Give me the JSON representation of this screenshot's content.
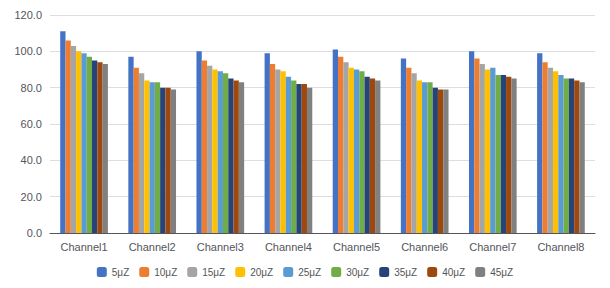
{
  "chart_data": {
    "type": "bar",
    "categories": [
      "Channel1",
      "Channel2",
      "Channel3",
      "Channel4",
      "Channel5",
      "Channel6",
      "Channel7",
      "Channel8"
    ],
    "series": [
      {
        "name": "5μZ",
        "color": "#4472C4",
        "values": [
          111,
          97,
          100,
          99,
          101,
          96,
          100,
          99
        ]
      },
      {
        "name": "10μZ",
        "color": "#ED7D31",
        "values": [
          106,
          91,
          95,
          93,
          97,
          91,
          96,
          94
        ]
      },
      {
        "name": "15μZ",
        "color": "#A5A5A5",
        "values": [
          103,
          88,
          92,
          90,
          94,
          88,
          93,
          91
        ]
      },
      {
        "name": "20μZ",
        "color": "#FFC000",
        "values": [
          100,
          84,
          90,
          89,
          91,
          84,
          90,
          89
        ]
      },
      {
        "name": "25μZ",
        "color": "#5B9BD5",
        "values": [
          99,
          83,
          89,
          86,
          90,
          83,
          91,
          87
        ]
      },
      {
        "name": "30μZ",
        "color": "#70AD47",
        "values": [
          97,
          83,
          88,
          84,
          89,
          83,
          87,
          85
        ]
      },
      {
        "name": "35μZ",
        "color": "#264478",
        "values": [
          95,
          80,
          85,
          82,
          86,
          80,
          87,
          85
        ]
      },
      {
        "name": "40μZ",
        "color": "#9E480E",
        "values": [
          94,
          80,
          84,
          82,
          85,
          79,
          86,
          84
        ]
      },
      {
        "name": "45μZ",
        "color": "#808080",
        "values": [
          93,
          79,
          83,
          80,
          84,
          79,
          85,
          83
        ]
      }
    ],
    "ylim": [
      0,
      120
    ],
    "yticks": [
      {
        "value": 0,
        "label": "0.0"
      },
      {
        "value": 20,
        "label": "20.0"
      },
      {
        "value": 40,
        "label": "40.0"
      },
      {
        "value": 60,
        "label": "60.0"
      },
      {
        "value": 80,
        "label": "80.0"
      },
      {
        "value": 100,
        "label": "100.0"
      },
      {
        "value": 120,
        "label": "120.0"
      }
    ],
    "grid": true,
    "legend": "bottom"
  }
}
